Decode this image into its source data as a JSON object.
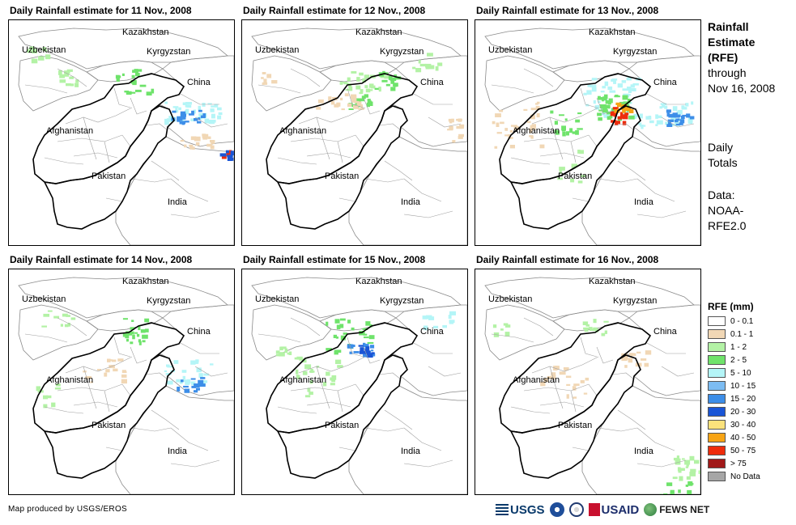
{
  "panels": [
    {
      "title": "Daily Rainfall estimate for 11 Nov., 2008"
    },
    {
      "title": "Daily Rainfall estimate for 12 Nov., 2008"
    },
    {
      "title": "Daily Rainfall estimate for 13 Nov., 2008"
    },
    {
      "title": "Daily Rainfall estimate for 14 Nov., 2008"
    },
    {
      "title": "Daily Rainfall estimate for 15 Nov., 2008"
    },
    {
      "title": "Daily Rainfall estimate for 16 Nov., 2008"
    }
  ],
  "map_labels": {
    "kazakhstan": "Kazakhstan",
    "uzbekistan": "Uzbekistan",
    "kyrgyzstan": "Kyrgyzstan",
    "china": "China",
    "afghanistan": "Afghanistan",
    "pakistan": "Pakistan",
    "india": "India"
  },
  "side": {
    "title_lines": [
      "Rainfall",
      "Estimate",
      "(RFE)"
    ],
    "through_lines": [
      "through",
      "Nov 16, 2008"
    ],
    "totals_lines": [
      "Daily",
      "Totals"
    ],
    "data_lines": [
      "Data:",
      "NOAA-",
      "RFE2.0"
    ]
  },
  "legend": {
    "title": "RFE (mm)",
    "items": [
      {
        "label": "0 - 0.1",
        "color": "#ffffff"
      },
      {
        "label": "0.1 - 1",
        "color": "#f1d7b5"
      },
      {
        "label": "1 - 2",
        "color": "#b3f2a5"
      },
      {
        "label": "2 - 5",
        "color": "#6fe36b"
      },
      {
        "label": "5 - 10",
        "color": "#b4f5f7"
      },
      {
        "label": "10 - 15",
        "color": "#7cbcf2"
      },
      {
        "label": "15 - 20",
        "color": "#3d8ee8"
      },
      {
        "label": "20 - 30",
        "color": "#1a55d6"
      },
      {
        "label": "30 - 40",
        "color": "#fbe27c"
      },
      {
        "label": "40 - 50",
        "color": "#f7a415"
      },
      {
        "label": "50 - 75",
        "color": "#ee2c0c"
      },
      {
        "label": "> 75",
        "color": "#a11919"
      },
      {
        "label": "No Data",
        "color": "#a6a6a6"
      }
    ]
  },
  "credit": "Map produced by USGS/EROS",
  "logos": {
    "usgs": "USGS",
    "usaid": "USAID",
    "fews": "FEWS NET"
  }
}
